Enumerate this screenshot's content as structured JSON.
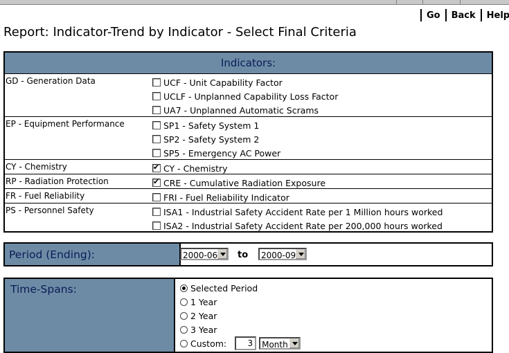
{
  "nav": {
    "go": "Go",
    "back": "Back",
    "help": "Help"
  },
  "page_title": "Report: Indicator-Trend by Indicator - Select Final Criteria",
  "indicators": {
    "header": "Indicators:",
    "groups": [
      {
        "category": "GD - Generation Data",
        "options": [
          {
            "label": "UCF - Unit Capability Factor",
            "checked": false
          },
          {
            "label": "UCLF - Unplanned Capability Loss Factor",
            "checked": false
          },
          {
            "label": "UA7 - Unplanned Automatic Scrams",
            "checked": false
          }
        ]
      },
      {
        "category": "EP - Equipment Performance",
        "options": [
          {
            "label": "SP1 - Safety System 1",
            "checked": false
          },
          {
            "label": "SP2 - Safety System 2",
            "checked": false
          },
          {
            "label": "SP5 - Emergency AC Power",
            "checked": false
          }
        ]
      },
      {
        "category": "CY - Chemistry",
        "options": [
          {
            "label": "CY - Chemistry",
            "checked": true
          }
        ]
      },
      {
        "category": "RP - Radiation Protection",
        "options": [
          {
            "label": "CRE - Cumulative Radiation Exposure",
            "checked": true
          }
        ]
      },
      {
        "category": "FR - Fuel Reliability",
        "options": [
          {
            "label": "FRI - Fuel Reliability Indicator",
            "checked": false
          }
        ]
      },
      {
        "category": "PS - Personnel Safety",
        "options": [
          {
            "label": "ISA1 - Industrial Safety Accident Rate per 1 Million hours worked",
            "checked": false
          },
          {
            "label": "ISA2 - Industrial Safety Accident Rate per 200,000 hours worked",
            "checked": false
          }
        ]
      }
    ]
  },
  "period": {
    "label": "Period (Ending):",
    "from": "2000-06",
    "to_label": "to",
    "to": "2000-09"
  },
  "time_spans": {
    "label": "Time-Spans:",
    "options": [
      {
        "label": "Selected Period",
        "selected": true
      },
      {
        "label": "1 Year",
        "selected": false
      },
      {
        "label": "2 Year",
        "selected": false
      },
      {
        "label": "3 Year",
        "selected": false
      },
      {
        "label": "Custom:",
        "selected": false
      }
    ],
    "custom_value": "3",
    "custom_unit": "Month"
  },
  "colors": {
    "header_bg": "#6d8ba5",
    "header_text": "#0b1c56"
  }
}
